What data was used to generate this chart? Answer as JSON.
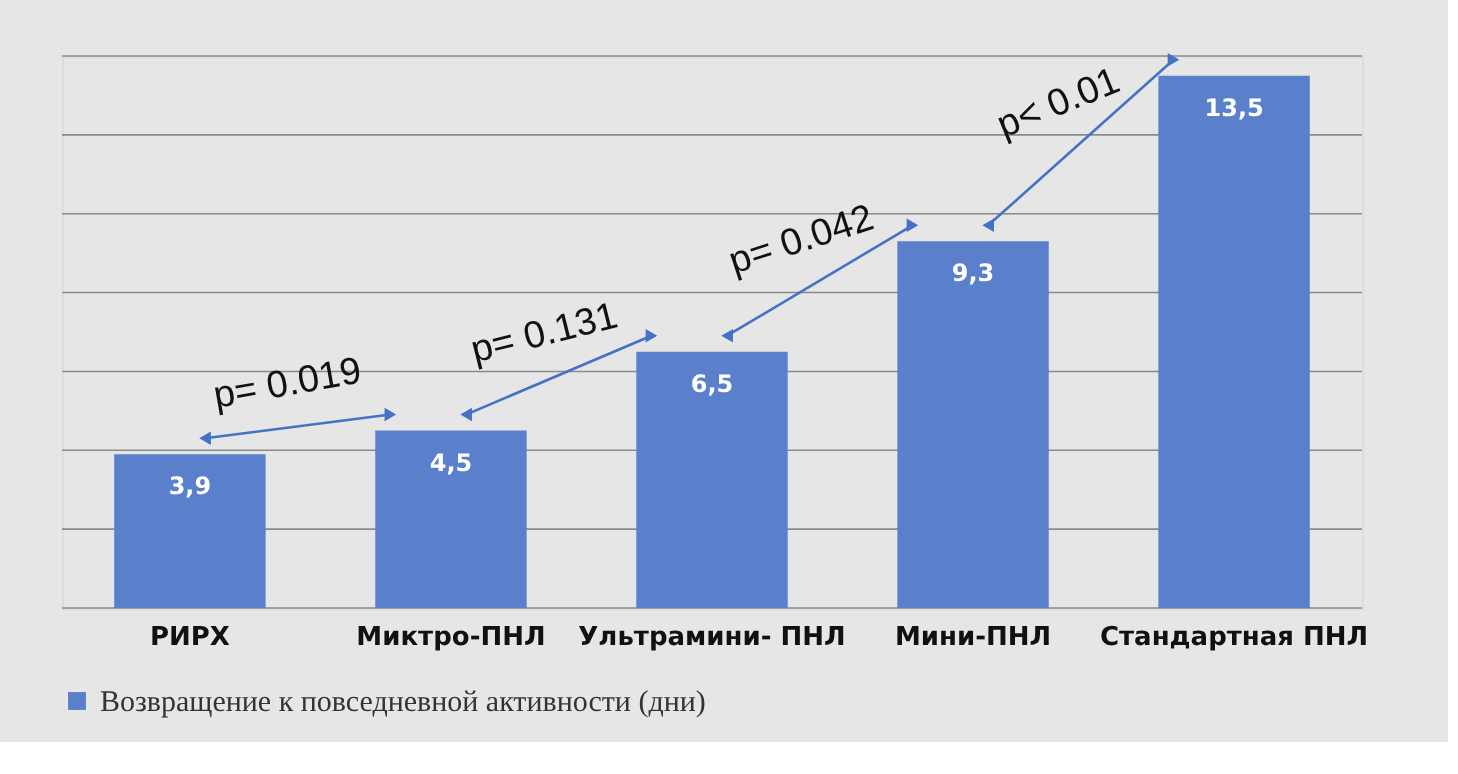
{
  "chart_data": {
    "type": "bar",
    "categories": [
      "РИРХ",
      "Миктро-ПНЛ",
      "Ультрамини- ПНЛ",
      "Мини-ПНЛ",
      "Стандартная ПНЛ"
    ],
    "series": [
      {
        "name": "Возвращение к повседневной активности (дни)",
        "color": "#5a7fcb",
        "values": [
          3.9,
          4.5,
          6.5,
          9.3,
          13.5
        ],
        "value_labels": [
          "3,9",
          "4,5",
          "6,5",
          "9,3",
          "13,5"
        ]
      }
    ],
    "ylim": [
      0,
      14
    ],
    "yticks": [
      {
        "value": 0,
        "label": null
      },
      {
        "value": 2,
        "label": null
      },
      {
        "value": 4,
        "label": null
      },
      {
        "value": 6,
        "label": null
      },
      {
        "value": 8,
        "label": null
      },
      {
        "value": 10,
        "label": null
      },
      {
        "value": 12,
        "label": null
      },
      {
        "value": 14,
        "label": null
      }
    ],
    "tick_labels": "x",
    "grid": "y",
    "legend": "bottom",
    "annotations": [
      "p= 0.019",
      "p= 0.131",
      "p= 0.042",
      "p< 0.01"
    ]
  }
}
